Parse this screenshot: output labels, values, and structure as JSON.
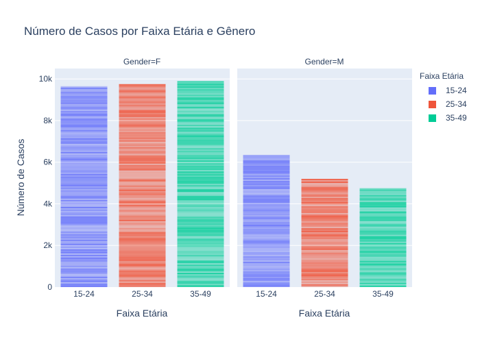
{
  "chart_data": {
    "type": "bar",
    "title": "Número de Casos por Faixa Etária e Gênero",
    "ylabel": "Número de Casos",
    "ylim": [
      0,
      10500
    ],
    "yticks": [
      0,
      2000,
      4000,
      6000,
      8000,
      10000
    ],
    "ytick_labels": [
      "0",
      "2k",
      "4k",
      "6k",
      "8k",
      "10k"
    ],
    "categories": [
      "15-24",
      "25-34",
      "35-49"
    ],
    "legend": {
      "title": "Faixa Etária",
      "items": [
        "15-24",
        "25-34",
        "35-49"
      ],
      "colors": [
        "#636efa",
        "#ef553b",
        "#00cc96"
      ]
    },
    "facets": [
      {
        "label": "Gender=F",
        "xlabel": "Faixa Etária",
        "values": [
          9650,
          9750,
          9900
        ]
      },
      {
        "label": "Gender=M",
        "xlabel": "Faixa Etária",
        "values": [
          6350,
          5200,
          4750
        ]
      }
    ]
  }
}
